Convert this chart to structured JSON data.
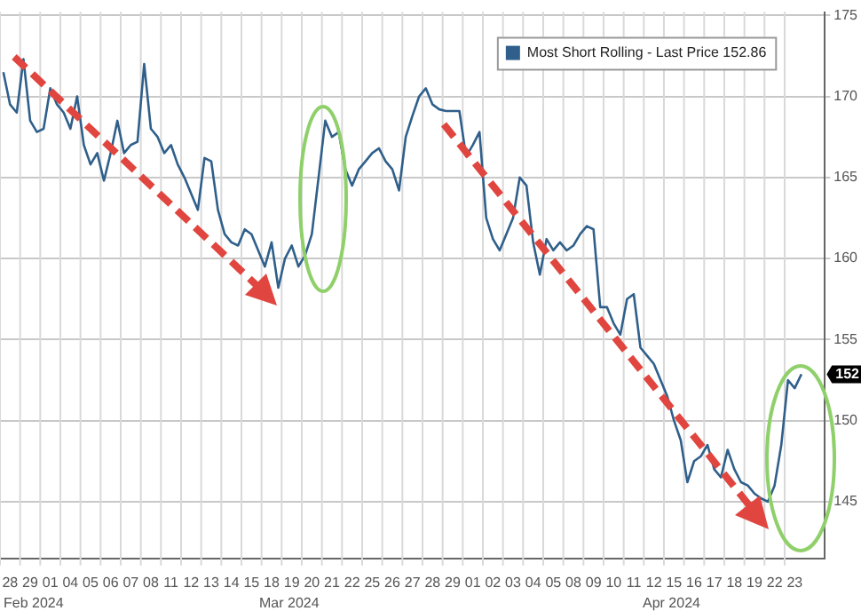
{
  "chart_data": {
    "type": "line",
    "categories": [
      null,
      "28",
      null,
      null,
      "29",
      null,
      null,
      "01",
      null,
      null,
      "04",
      null,
      null,
      "05",
      null,
      null,
      "06",
      null,
      null,
      "07",
      null,
      null,
      "08",
      null,
      null,
      "11",
      null,
      null,
      "12",
      null,
      null,
      "13",
      null,
      null,
      "14",
      null,
      null,
      "15",
      null,
      null,
      "18",
      null,
      null,
      "19",
      null,
      null,
      "20",
      null,
      null,
      "21",
      null,
      null,
      "22",
      null,
      null,
      "25",
      null,
      null,
      "26",
      null,
      null,
      "27",
      null,
      null,
      "28",
      null,
      null,
      "29",
      null,
      null,
      "01",
      null,
      null,
      "02",
      null,
      null,
      "03",
      null,
      null,
      "04",
      null,
      null,
      "05",
      null,
      null,
      "08",
      null,
      null,
      "09",
      null,
      null,
      "10",
      null,
      null,
      "11",
      null,
      null,
      "12",
      null,
      null,
      "15",
      null,
      null,
      "16",
      null,
      null,
      "17",
      null,
      null,
      "18",
      null,
      null,
      "19",
      null,
      null,
      "22",
      null,
      null,
      "23",
      null,
      null,
      null,
      null
    ],
    "series": [
      {
        "name": "Most Short Rolling - Last Price 152.86",
        "color": "#2f5f8a",
        "values": [
          171.5,
          169.5,
          169.0,
          172.3,
          168.5,
          167.8,
          168.0,
          170.5,
          169.5,
          169.0,
          168.0,
          170.0,
          167.0,
          165.8,
          166.5,
          164.8,
          166.5,
          168.5,
          166.5,
          167.0,
          167.2,
          172.0,
          168.0,
          167.5,
          166.5,
          167.0,
          165.8,
          165.0,
          164.0,
          163.0,
          166.2,
          166.0,
          163.0,
          161.5,
          161.0,
          160.8,
          161.8,
          161.5,
          160.5,
          159.5,
          161.0,
          158.2,
          160.0,
          160.8,
          159.5,
          160.2,
          161.5,
          165.0,
          168.5,
          167.5,
          167.8,
          165.5,
          164.5,
          165.5,
          166.0,
          166.5,
          166.8,
          166.0,
          165.5,
          164.2,
          167.5,
          168.8,
          170.0,
          170.5,
          169.5,
          169.2,
          169.1,
          169.1,
          169.1,
          166.3,
          167.0,
          167.8,
          162.5,
          161.2,
          160.5,
          161.5,
          162.5,
          165.0,
          164.5,
          161.0,
          159.0,
          161.2,
          160.5,
          161.0,
          160.5,
          160.8,
          161.5,
          162.0,
          161.8,
          157.0,
          157.0,
          156.0,
          155.3,
          157.5,
          157.8,
          154.5,
          154.0,
          153.5,
          152.5,
          151.5,
          150.0,
          148.8,
          146.2,
          147.5,
          147.8,
          148.5,
          147.0,
          146.5,
          148.2,
          147.0,
          146.2,
          146.0,
          145.5,
          145.2,
          145.0,
          146.0,
          148.5,
          152.5,
          152.0,
          152.86,
          null,
          null,
          null
        ]
      }
    ],
    "ylim": [
      141.5,
      175.2
    ],
    "yticks": [
      145,
      150,
      155,
      160,
      165,
      170,
      175
    ],
    "grid": true,
    "legend": "top right",
    "marker": "none",
    "line_style": "solid",
    "annotations": [
      "Feb 2024",
      "Mar 2024",
      "Apr 2024",
      {
        "text": "152",
        "y": 152.86
      }
    ]
  }
}
